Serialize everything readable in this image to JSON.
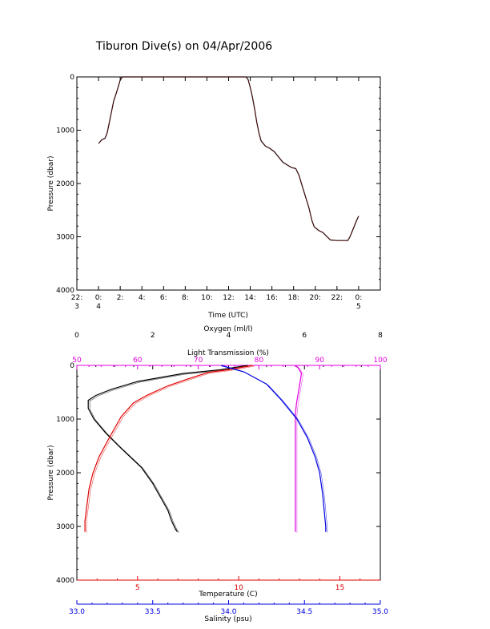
{
  "title": "Tiburon Dive(s) on 04/Apr/2006",
  "colors": {
    "axis": "#000000",
    "oxygen": "#000000",
    "light": "#e000e0",
    "temperature": "#e00000",
    "salinity": "#0000e0"
  },
  "chart_data": [
    {
      "type": "line",
      "title": "Tiburon Dive(s) on 04/Apr/2006",
      "xlabel": "Time (UTC)",
      "ylabel": "Pressure (dbar)",
      "ylim": [
        4000,
        0
      ],
      "xlim": [
        -2,
        26
      ],
      "yticks": [
        "0",
        "1000",
        "2000",
        "3000",
        "4000"
      ],
      "xticks": [
        {
          "hour": -2,
          "line1": "22:",
          "line2": "3"
        },
        {
          "hour": 0,
          "line1": "0:",
          "line2": "4"
        },
        {
          "hour": 2,
          "line1": "2:",
          "line2": ""
        },
        {
          "hour": 4,
          "line1": "4:",
          "line2": ""
        },
        {
          "hour": 6,
          "line1": "6:",
          "line2": ""
        },
        {
          "hour": 8,
          "line1": "8:",
          "line2": ""
        },
        {
          "hour": 10,
          "line1": "10:",
          "line2": ""
        },
        {
          "hour": 12,
          "line1": "12:",
          "line2": ""
        },
        {
          "hour": 14,
          "line1": "14:",
          "line2": ""
        },
        {
          "hour": 16,
          "line1": "16:",
          "line2": ""
        },
        {
          "hour": 18,
          "line1": "18:",
          "line2": ""
        },
        {
          "hour": 20,
          "line1": "20:",
          "line2": ""
        },
        {
          "hour": 22,
          "line1": "22:",
          "line2": ""
        },
        {
          "hour": 24,
          "line1": "0:",
          "line2": "5"
        }
      ],
      "series": [
        {
          "points": [
            [
              0.0,
              1250
            ],
            [
              0.3,
              1180
            ],
            [
              0.6,
              1150
            ],
            [
              0.8,
              1050
            ],
            [
              1.0,
              850
            ],
            [
              1.2,
              650
            ],
            [
              1.4,
              450
            ],
            [
              1.6,
              330
            ],
            [
              1.8,
              200
            ],
            [
              2.0,
              60
            ],
            [
              2.2,
              0
            ],
            [
              6.0,
              0
            ],
            [
              10.0,
              0
            ],
            [
              13.6,
              0
            ],
            [
              13.8,
              50
            ],
            [
              14.0,
              200
            ],
            [
              14.2,
              380
            ],
            [
              14.4,
              600
            ],
            [
              14.6,
              850
            ],
            [
              14.8,
              1050
            ],
            [
              15.0,
              1200
            ],
            [
              15.4,
              1300
            ],
            [
              15.8,
              1340
            ],
            [
              16.2,
              1400
            ],
            [
              16.6,
              1500
            ],
            [
              17.0,
              1600
            ],
            [
              17.4,
              1650
            ],
            [
              17.8,
              1700
            ],
            [
              18.2,
              1720
            ],
            [
              18.5,
              1850
            ],
            [
              18.8,
              2050
            ],
            [
              19.1,
              2250
            ],
            [
              19.4,
              2450
            ],
            [
              19.7,
              2700
            ],
            [
              19.9,
              2810
            ],
            [
              20.3,
              2880
            ],
            [
              20.7,
              2920
            ],
            [
              21.0,
              2980
            ],
            [
              21.4,
              3060
            ],
            [
              22.0,
              3070
            ],
            [
              23.0,
              3070
            ],
            [
              23.2,
              3000
            ],
            [
              23.5,
              2850
            ],
            [
              23.8,
              2700
            ],
            [
              24.0,
              2610
            ]
          ]
        }
      ]
    },
    {
      "type": "line",
      "ylabel": "Pressure (dbar)",
      "ylim": [
        4000,
        0
      ],
      "yticks": [
        "0",
        "1000",
        "2000",
        "3000",
        "4000"
      ],
      "axes": {
        "oxygen": {
          "label": "Oxygen (ml/l)",
          "range": [
            0,
            8
          ],
          "ticks": [
            "0",
            "2",
            "4",
            "6",
            "8"
          ]
        },
        "light": {
          "label": "Light Transmission (%)",
          "range": [
            50,
            100
          ],
          "ticks": [
            "50",
            "60",
            "70",
            "80",
            "90",
            "100"
          ]
        },
        "temperature": {
          "label": "Temperature (C)",
          "range": [
            2,
            17
          ],
          "ticks": [
            "5",
            "10",
            "15"
          ],
          "tick_values": [
            5,
            10,
            15
          ]
        },
        "salinity": {
          "label": "Salinity (psu)",
          "range": [
            33.0,
            35.0
          ],
          "ticks": [
            "33.0",
            "33.5",
            "34.0",
            "34.5",
            "35.0"
          ]
        }
      },
      "series": [
        {
          "axis": "oxygen",
          "points": [
            [
              4.5,
              0
            ],
            [
              3.8,
              80
            ],
            [
              2.8,
              150
            ],
            [
              1.6,
              300
            ],
            [
              0.9,
              450
            ],
            [
              0.5,
              560
            ],
            [
              0.3,
              650
            ],
            [
              0.3,
              800
            ],
            [
              0.45,
              1000
            ],
            [
              0.75,
              1250
            ],
            [
              1.1,
              1500
            ],
            [
              1.4,
              1700
            ],
            [
              1.7,
              1900
            ],
            [
              2.0,
              2200
            ],
            [
              2.2,
              2450
            ],
            [
              2.4,
              2700
            ],
            [
              2.5,
              2900
            ],
            [
              2.6,
              3050
            ],
            [
              2.65,
              3100
            ]
          ]
        },
        {
          "axis": "light",
          "points": [
            [
              86.0,
              0
            ],
            [
              86.5,
              50
            ],
            [
              87.0,
              150
            ],
            [
              86.8,
              300
            ],
            [
              86.5,
              500
            ],
            [
              86.2,
              700
            ],
            [
              86.0,
              900
            ],
            [
              86.0,
              1200
            ],
            [
              86.0,
              2000
            ],
            [
              86.0,
              3000
            ],
            [
              86.0,
              3100
            ]
          ]
        },
        {
          "axis": "temperature",
          "points": [
            [
              10.7,
              0
            ],
            [
              9.5,
              80
            ],
            [
              8.5,
              130
            ],
            [
              7.5,
              250
            ],
            [
              6.5,
              380
            ],
            [
              5.5,
              550
            ],
            [
              4.8,
              700
            ],
            [
              4.2,
              950
            ],
            [
              3.6,
              1350
            ],
            [
              3.1,
              1700
            ],
            [
              2.8,
              2000
            ],
            [
              2.6,
              2300
            ],
            [
              2.5,
              2600
            ],
            [
              2.4,
              2900
            ],
            [
              2.4,
              3100
            ]
          ]
        },
        {
          "axis": "salinity",
          "points": [
            [
              33.95,
              0
            ],
            [
              34.1,
              120
            ],
            [
              34.25,
              350
            ],
            [
              34.35,
              650
            ],
            [
              34.45,
              1000
            ],
            [
              34.52,
              1350
            ],
            [
              34.57,
              1700
            ],
            [
              34.6,
              2000
            ],
            [
              34.62,
              2400
            ],
            [
              34.63,
              2700
            ],
            [
              34.64,
              3000
            ],
            [
              34.64,
              3100
            ]
          ]
        }
      ]
    }
  ]
}
